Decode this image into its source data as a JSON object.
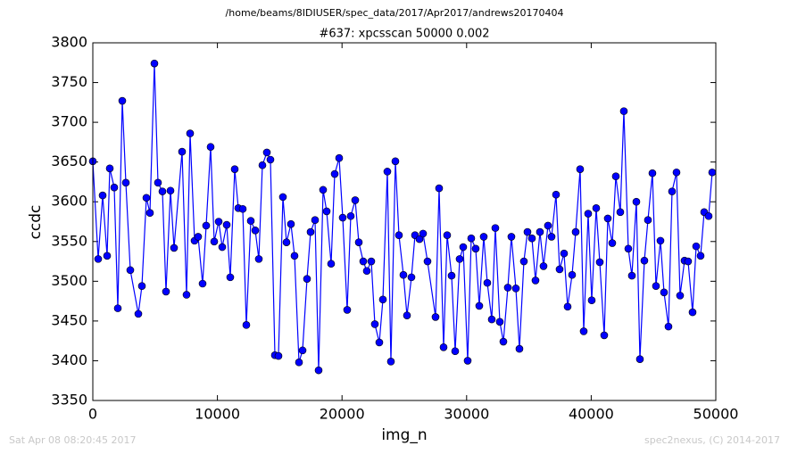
{
  "chart_data": {
    "type": "line",
    "title": "/home/beams/8IDIUSER/spec_data/2017/Apr2017/andrews20170404",
    "subtitle": "#637: xpcsscan 50000 0.002",
    "xlabel": "img_n",
    "ylabel": "ccdc",
    "footer_left": "Sat Apr 08 08:20:45 2017",
    "footer_right": "spec2nexus, (C) 2014-2017",
    "xlim": [
      0,
      50000
    ],
    "xticks": [
      0,
      10000,
      20000,
      30000,
      40000,
      50000
    ],
    "ylim": [
      3350,
      3800
    ],
    "yticks": [
      3350,
      3400,
      3450,
      3500,
      3550,
      3600,
      3650,
      3700,
      3750,
      3800
    ],
    "grid": false,
    "x": [
      0,
      430,
      788,
      1146,
      1361,
      1719,
      2005,
      2364,
      2650,
      3008,
      3653,
      3940,
      4298,
      4584,
      4942,
      5229,
      5587,
      5873,
      6232,
      6518,
      7163,
      7521,
      7808,
      8166,
      8452,
      8810,
      9097,
      9455,
      9742,
      10100,
      10386,
      10745,
      11031,
      11389,
      11676,
      12034,
      12320,
      12679,
      13037,
      13323,
      13610,
      13968,
      14254,
      14613,
      14899,
      15257,
      15544,
      15902,
      16188,
      16547,
      16833,
      17191,
      17478,
      17836,
      18122,
      18481,
      18767,
      19125,
      19412,
      19770,
      20056,
      20415,
      20701,
      21059,
      21346,
      21704,
      21990,
      22349,
      22635,
      22993,
      23280,
      23638,
      23924,
      24283,
      24569,
      24927,
      25214,
      25572,
      25858,
      26217,
      26503,
      26861,
      27506,
      27792,
      28151,
      28437,
      28795,
      29082,
      29440,
      29726,
      30085,
      30371,
      30729,
      31016,
      31374,
      31660,
      32019,
      32305,
      32663,
      32950,
      33308,
      33594,
      33953,
      34239,
      34597,
      34884,
      35242,
      35528,
      35887,
      36173,
      36531,
      36818,
      37176,
      37462,
      37821,
      38107,
      38465,
      38752,
      39110,
      39397,
      39755,
      40041,
      40399,
      40686,
      41044,
      41330,
      41689,
      41975,
      42333,
      42620,
      42978,
      43265,
      43623,
      43909,
      44267,
      44554,
      44912,
      45198,
      45557,
      45843,
      46201,
      46488,
      46846,
      47132,
      47491,
      47777,
      48135,
      48422,
      48780,
      49066,
      49425,
      49711
    ],
    "series": [
      {
        "name": "ccdc",
        "color": "#0000ff",
        "values": [
          3651,
          3528,
          3608,
          3532,
          3642,
          3618,
          3466,
          3727,
          3624,
          3514,
          3459,
          3494,
          3605,
          3586,
          3774,
          3624,
          3613,
          3487,
          3614,
          3542,
          3663,
          3483,
          3686,
          3551,
          3556,
          3497,
          3570,
          3669,
          3550,
          3575,
          3543,
          3571,
          3505,
          3641,
          3592,
          3591,
          3445,
          3576,
          3564,
          3528,
          3646,
          3662,
          3653,
          3407,
          3406,
          3606,
          3549,
          3572,
          3532,
          3398,
          3413,
          3503,
          3562,
          3577,
          3388,
          3615,
          3588,
          3522,
          3635,
          3655,
          3580,
          3464,
          3582,
          3602,
          3549,
          3525,
          3513,
          3525,
          3446,
          3423,
          3477,
          3638,
          3399,
          3651,
          3558,
          3508,
          3457,
          3505,
          3558,
          3553,
          3560,
          3525,
          3455,
          3617,
          3417,
          3558,
          3507,
          3412,
          3528,
          3543,
          3400,
          3554,
          3541,
          3469,
          3556,
          3498,
          3452,
          3567,
          3449,
          3424,
          3492,
          3556,
          3491,
          3415,
          3525,
          3562,
          3554,
          3501,
          3562,
          3519,
          3570,
          3556,
          3609,
          3515,
          3535,
          3468,
          3508,
          3562,
          3641,
          3437,
          3585,
          3476,
          3592,
          3524,
          3432,
          3579,
          3548,
          3632,
          3587,
          3714,
          3541,
          3507,
          3600,
          3402,
          3526,
          3577,
          3636,
          3494,
          3551,
          3486,
          3443,
          3613,
          3637,
          3482,
          3526,
          3525,
          3461,
          3544,
          3532,
          3587,
          3582,
          3637
        ]
      }
    ]
  }
}
